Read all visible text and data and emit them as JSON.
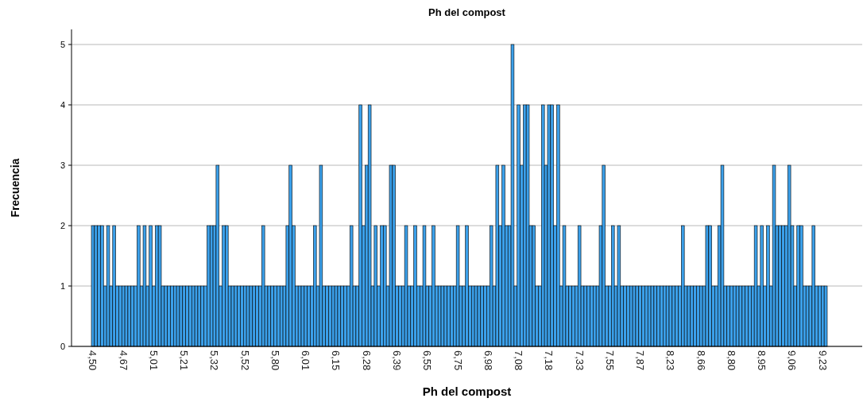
{
  "chart_data": {
    "type": "bar",
    "title": "Ph del compost",
    "xlabel": "Ph del compost",
    "ylabel": "Frecuencia",
    "categories": [
      "4,50",
      null,
      null,
      null,
      null,
      null,
      null,
      null,
      null,
      null,
      "4,67",
      null,
      null,
      null,
      null,
      null,
      null,
      null,
      null,
      null,
      "5,01",
      null,
      null,
      null,
      null,
      null,
      null,
      null,
      null,
      null,
      "5,21",
      null,
      null,
      null,
      null,
      null,
      null,
      null,
      null,
      null,
      "5,32",
      null,
      null,
      null,
      null,
      null,
      null,
      null,
      null,
      null,
      "5,52",
      null,
      null,
      null,
      null,
      null,
      null,
      null,
      null,
      null,
      "5,80",
      null,
      null,
      null,
      null,
      null,
      null,
      null,
      null,
      null,
      "6,01",
      null,
      null,
      null,
      null,
      null,
      null,
      null,
      null,
      null,
      "6,15",
      null,
      null,
      null,
      null,
      null,
      null,
      null,
      null,
      null,
      "6,28",
      null,
      null,
      null,
      null,
      null,
      null,
      null,
      null,
      null,
      "6,39",
      null,
      null,
      null,
      null,
      null,
      null,
      null,
      null,
      null,
      "6,55",
      null,
      null,
      null,
      null,
      null,
      null,
      null,
      null,
      null,
      "6,75",
      null,
      null,
      null,
      null,
      null,
      null,
      null,
      null,
      null,
      "6,98",
      null,
      null,
      null,
      null,
      null,
      null,
      null,
      null,
      null,
      "7,08",
      null,
      null,
      null,
      null,
      null,
      null,
      null,
      null,
      null,
      "7,18",
      null,
      null,
      null,
      null,
      null,
      null,
      null,
      null,
      null,
      "7,33",
      null,
      null,
      null,
      null,
      null,
      null,
      null,
      null,
      null,
      "7,55",
      null,
      null,
      null,
      null,
      null,
      null,
      null,
      null,
      null,
      "7,87",
      null,
      null,
      null,
      null,
      null,
      null,
      null,
      null,
      null,
      "8,23",
      null,
      null,
      null,
      null,
      null,
      null,
      null,
      null,
      null,
      "8,66",
      null,
      null,
      null,
      null,
      null,
      null,
      null,
      null,
      null,
      "8,80",
      null,
      null,
      null,
      null,
      null,
      null,
      null,
      null,
      null,
      "8,95",
      null,
      null,
      null,
      null,
      null,
      null,
      null,
      null,
      null,
      "9,06",
      null,
      null,
      null,
      null,
      null,
      null,
      null,
      null,
      null,
      "9,23",
      null
    ],
    "values": [
      2,
      2,
      2,
      2,
      1,
      2,
      1,
      2,
      1,
      1,
      1,
      1,
      1,
      1,
      1,
      2,
      1,
      2,
      1,
      2,
      1,
      2,
      2,
      1,
      1,
      1,
      1,
      1,
      1,
      1,
      1,
      1,
      1,
      1,
      1,
      1,
      1,
      1,
      2,
      2,
      2,
      3,
      1,
      2,
      2,
      1,
      1,
      1,
      1,
      1,
      1,
      1,
      1,
      1,
      1,
      1,
      2,
      1,
      1,
      1,
      1,
      1,
      1,
      1,
      2,
      3,
      2,
      1,
      1,
      1,
      1,
      1,
      1,
      2,
      1,
      3,
      1,
      1,
      1,
      1,
      1,
      1,
      1,
      1,
      1,
      2,
      1,
      1,
      4,
      2,
      3,
      4,
      1,
      2,
      1,
      2,
      2,
      1,
      3,
      3,
      1,
      1,
      1,
      2,
      1,
      1,
      2,
      1,
      1,
      2,
      1,
      1,
      2,
      1,
      1,
      1,
      1,
      1,
      1,
      1,
      2,
      1,
      1,
      2,
      1,
      1,
      1,
      1,
      1,
      1,
      1,
      2,
      1,
      3,
      2,
      3,
      2,
      2,
      5,
      1,
      4,
      3,
      4,
      4,
      2,
      2,
      1,
      1,
      4,
      3,
      4,
      4,
      2,
      4,
      1,
      2,
      1,
      1,
      1,
      1,
      2,
      1,
      1,
      1,
      1,
      1,
      1,
      2,
      3,
      1,
      1,
      2,
      1,
      2,
      1,
      1,
      1,
      1,
      1,
      1,
      1,
      1,
      1,
      1,
      1,
      1,
      1,
      1,
      1,
      1,
      1,
      1,
      1,
      1,
      2,
      1,
      1,
      1,
      1,
      1,
      1,
      1,
      2,
      2,
      1,
      1,
      2,
      3,
      1,
      1,
      1,
      1,
      1,
      1,
      1,
      1,
      1,
      1,
      2,
      1,
      2,
      1,
      2,
      1,
      3,
      2,
      2,
      2,
      2,
      3,
      2,
      1,
      2,
      2,
      1,
      1,
      1,
      2,
      1,
      1,
      1,
      1
    ],
    "color": "#3ba0ea",
    "ylim": [
      0,
      5.25
    ],
    "yticks": [
      0,
      1,
      2,
      3,
      4,
      5
    ],
    "grid": "y"
  }
}
